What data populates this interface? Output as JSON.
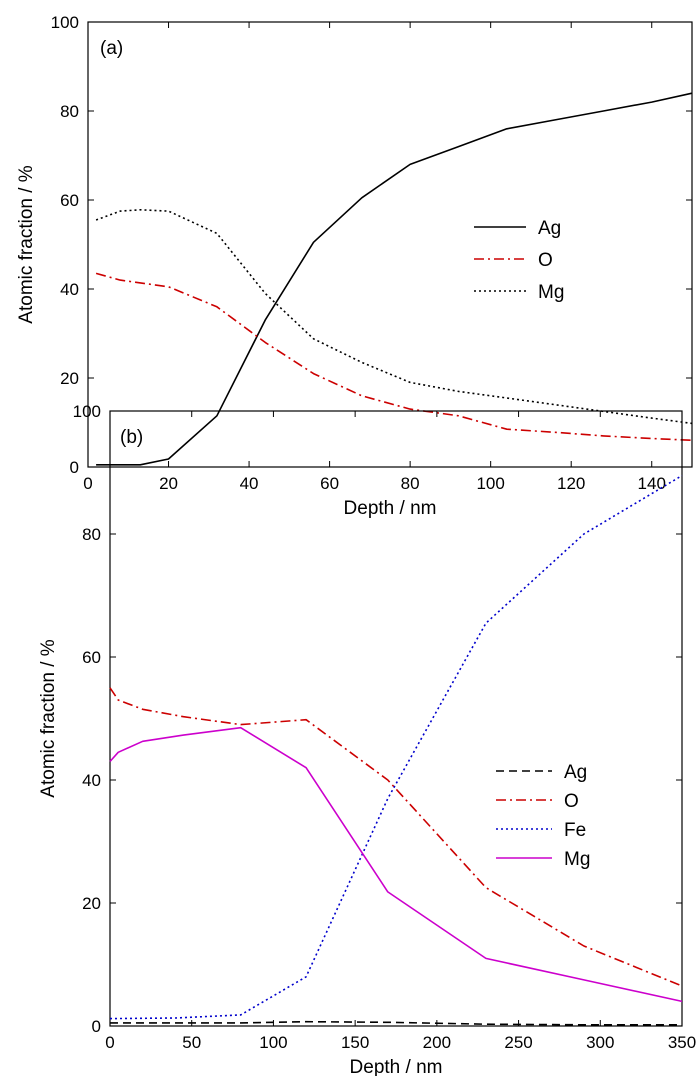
{
  "chart_data": [
    {
      "type": "line",
      "panel_label": "(a)",
      "xlabel": "Depth / nm",
      "ylabel": "Atomic fraction / %",
      "xlim": [
        0,
        150
      ],
      "ylim": [
        0,
        100
      ],
      "xticks": [
        0,
        20,
        40,
        60,
        80,
        100,
        120,
        140
      ],
      "yticks": [
        0,
        20,
        40,
        60,
        80,
        100
      ],
      "grid": false,
      "legend_position": "center-right",
      "series": [
        {
          "name": "Ag",
          "color": "#000000",
          "line_style": "solid",
          "points": [
            [
              2,
              0.5
            ],
            [
              13,
              0.5
            ],
            [
              20,
              1.8
            ],
            [
              32,
              11.5
            ],
            [
              44,
              33
            ],
            [
              56,
              50.5
            ],
            [
              68,
              60.5
            ],
            [
              80,
              68
            ],
            [
              92,
              72
            ],
            [
              104,
              76
            ],
            [
              116,
              78
            ],
            [
              128,
              80
            ],
            [
              140,
              82
            ],
            [
              150,
              84
            ]
          ]
        },
        {
          "name": "O",
          "color": "#cc0000",
          "line_style": "dash-dot",
          "points": [
            [
              2,
              43.5
            ],
            [
              8,
              42
            ],
            [
              20,
              40.5
            ],
            [
              32,
              36
            ],
            [
              44,
              28
            ],
            [
              56,
              21
            ],
            [
              68,
              16
            ],
            [
              80,
              13
            ],
            [
              92,
              11.5
            ],
            [
              104,
              8.5
            ],
            [
              116,
              7.8
            ],
            [
              128,
              7
            ],
            [
              140,
              6.4
            ],
            [
              150,
              6
            ]
          ]
        },
        {
          "name": "Mg",
          "color": "#000000",
          "line_style": "dotted",
          "points": [
            [
              2,
              55.5
            ],
            [
              8,
              57.5
            ],
            [
              13,
              57.8
            ],
            [
              20,
              57.5
            ],
            [
              32,
              52.5
            ],
            [
              44,
              39
            ],
            [
              56,
              28.8
            ],
            [
              68,
              23.5
            ],
            [
              80,
              19
            ],
            [
              92,
              17
            ],
            [
              104,
              15.5
            ],
            [
              116,
              14
            ],
            [
              128,
              12.5
            ],
            [
              140,
              11
            ],
            [
              150,
              9.8
            ]
          ]
        }
      ]
    },
    {
      "type": "line",
      "panel_label": "(b)",
      "xlabel": "Depth / nm",
      "ylabel": "Atomic fraction / %",
      "xlim": [
        0,
        350
      ],
      "ylim": [
        0,
        100
      ],
      "xticks": [
        0,
        50,
        100,
        150,
        200,
        250,
        300,
        350
      ],
      "yticks": [
        0,
        20,
        40,
        60,
        80,
        100
      ],
      "grid": false,
      "legend_position": "center-right",
      "series": [
        {
          "name": "Ag",
          "color": "#000000",
          "line_style": "dashed",
          "points": [
            [
              0,
              0.5
            ],
            [
              80,
              0.5
            ],
            [
              120,
              0.7
            ],
            [
              170,
              0.6
            ],
            [
              230,
              0.3
            ],
            [
              290,
              0.2
            ],
            [
              350,
              0.2
            ]
          ]
        },
        {
          "name": "O",
          "color": "#cc0000",
          "line_style": "dash-dot",
          "points": [
            [
              0,
              55
            ],
            [
              5,
              53
            ],
            [
              20,
              51.5
            ],
            [
              45,
              50.3
            ],
            [
              80,
              49
            ],
            [
              120,
              49.8
            ],
            [
              170,
              40
            ],
            [
              230,
              22.5
            ],
            [
              290,
              13
            ],
            [
              350,
              6.5
            ]
          ]
        },
        {
          "name": "Fe",
          "color": "#0000cc",
          "line_style": "dotted",
          "points": [
            [
              0,
              1.2
            ],
            [
              40,
              1.3
            ],
            [
              80,
              1.8
            ],
            [
              120,
              8
            ],
            [
              170,
              37
            ],
            [
              230,
              65.5
            ],
            [
              290,
              80
            ],
            [
              350,
              89.5
            ]
          ]
        },
        {
          "name": "Mg",
          "color": "#cc00cc",
          "line_style": "solid",
          "points": [
            [
              0,
              43
            ],
            [
              5,
              44.5
            ],
            [
              20,
              46.3
            ],
            [
              45,
              47.3
            ],
            [
              80,
              48.5
            ],
            [
              120,
              42
            ],
            [
              170,
              21.8
            ],
            [
              230,
              11
            ],
            [
              290,
              7.5
            ],
            [
              350,
              4
            ]
          ]
        }
      ]
    }
  ]
}
